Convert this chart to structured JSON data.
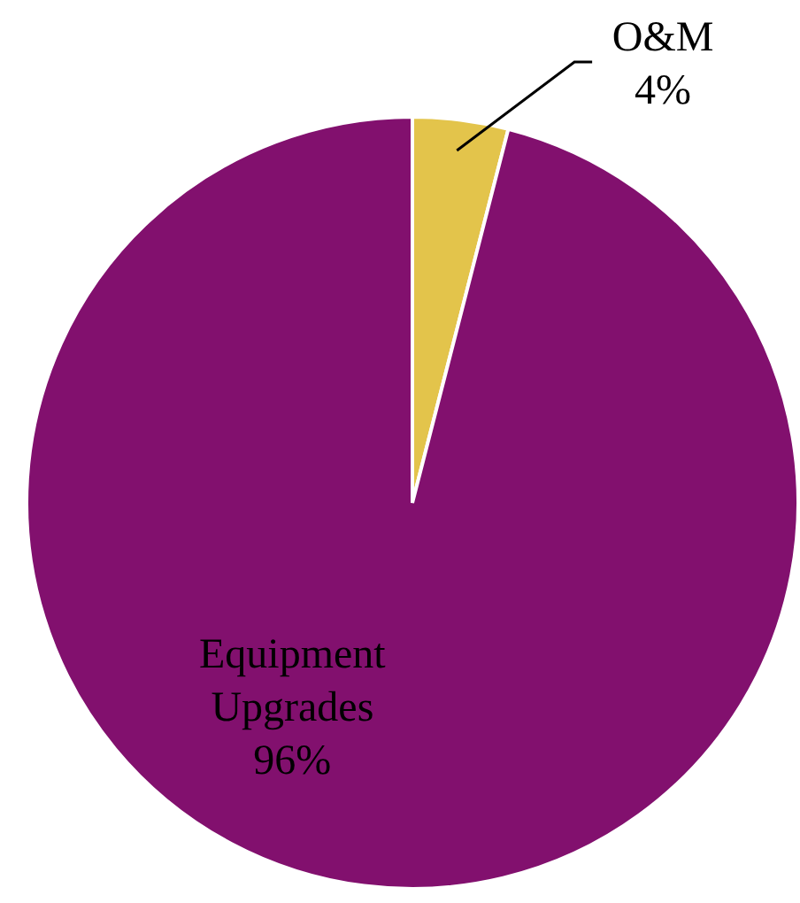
{
  "chart_data": {
    "type": "pie",
    "categories": [
      "O&M",
      "Equipment Upgrades"
    ],
    "values": [
      4,
      96
    ],
    "colors": [
      "#e3c44b",
      "#82106e"
    ],
    "value_labels": [
      "4%",
      "96%"
    ],
    "legend": false
  }
}
